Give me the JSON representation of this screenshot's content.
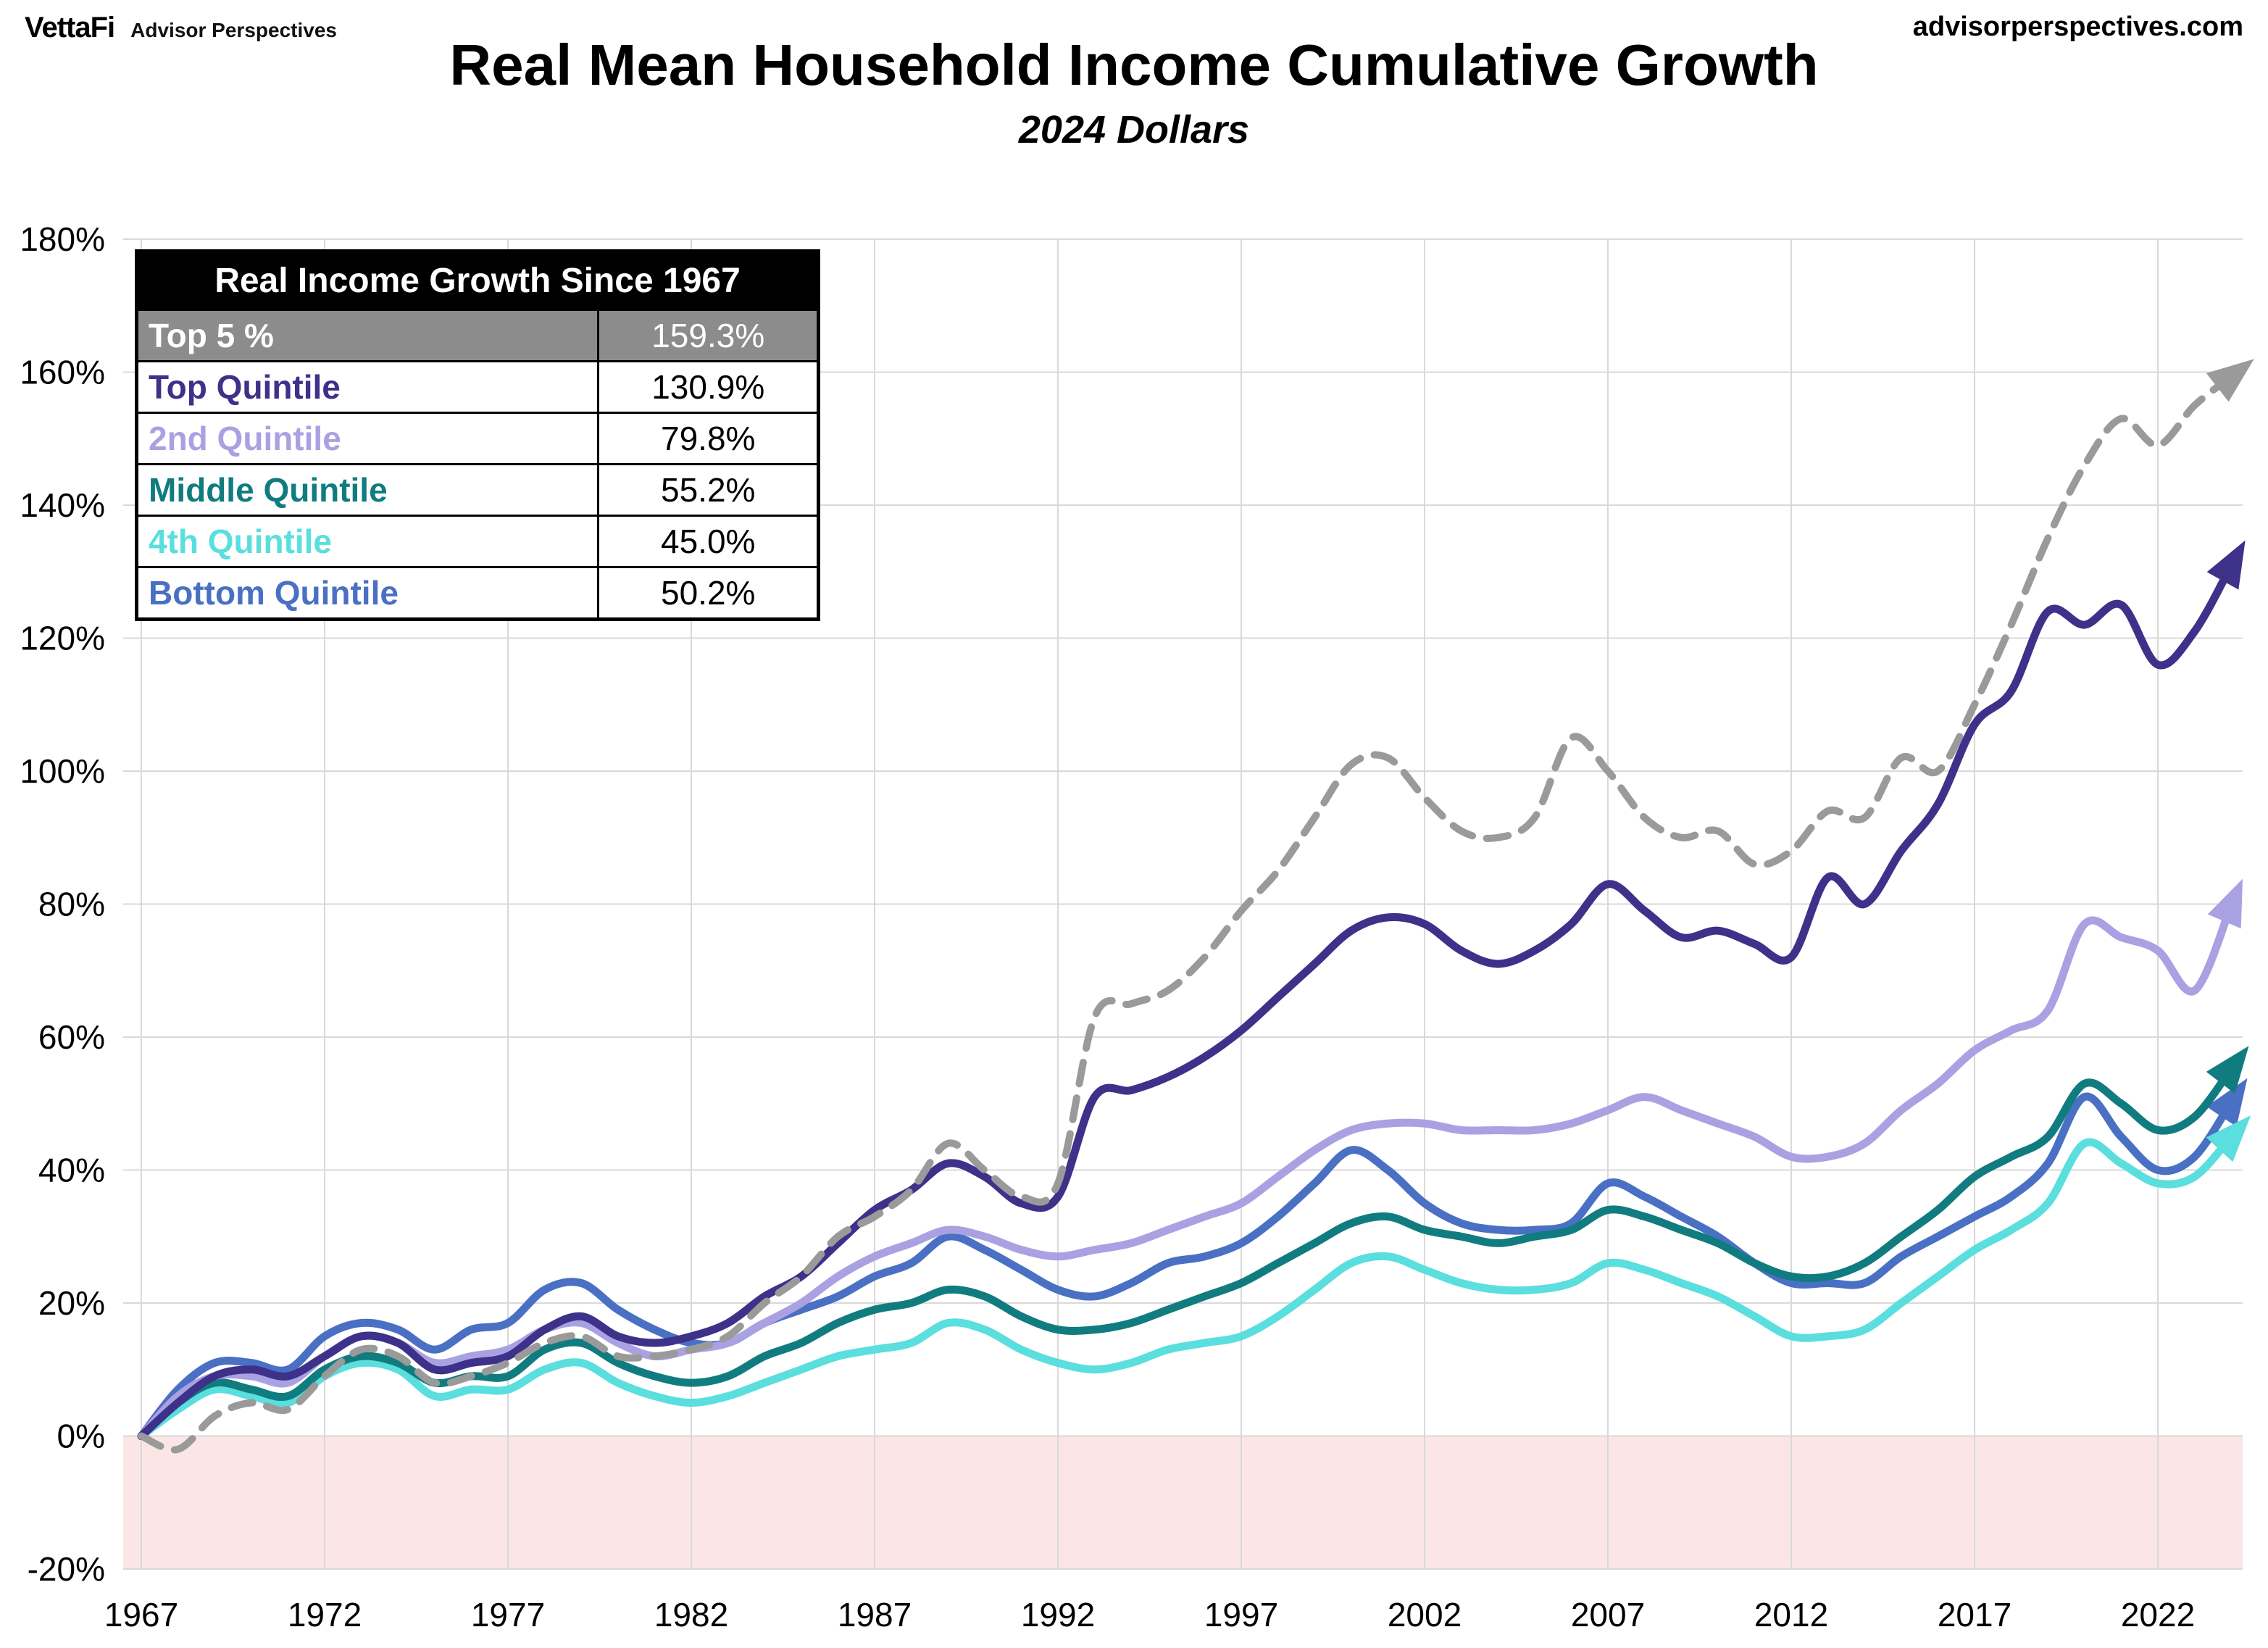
{
  "header": {
    "brand": "VettaFi",
    "brand_sub": "Advisor Perspectives",
    "site": "advisorperspectives.com"
  },
  "chart_data": {
    "type": "line",
    "title": "Real Mean Household Income Cumulative Growth",
    "subtitle": "2024 Dollars",
    "x_start": 1967,
    "x_end": 2024,
    "x_ticks": [
      1967,
      1972,
      1977,
      1982,
      1987,
      1992,
      1997,
      2002,
      2007,
      2012,
      2017,
      2022
    ],
    "ylim": [
      -20,
      180
    ],
    "y_tick_step": 20,
    "y_tick_suffix": "%",
    "grid_color": "#d9d9d9",
    "negative_region_color": "#fbe5e5",
    "legend": {
      "title": "Real Income Growth Since 1967",
      "rows": [
        {
          "label": "Top 5 %",
          "value": "159.3%",
          "label_color": "#ffffff",
          "value_color": "#ffffff",
          "row_bg": "#8c8c8c"
        },
        {
          "label": "Top Quintile",
          "value": "130.9%",
          "label_color": "#3d3189",
          "value_color": "#000000",
          "row_bg": "#ffffff"
        },
        {
          "label": "2nd Quintile",
          "value": "79.8%",
          "label_color": "#aaa1e2",
          "value_color": "#000000",
          "row_bg": "#ffffff"
        },
        {
          "label": "Middle Quintile",
          "value": "55.2%",
          "label_color": "#117c80",
          "value_color": "#000000",
          "row_bg": "#ffffff"
        },
        {
          "label": "4th Quintile",
          "value": "45.0%",
          "label_color": "#5adede",
          "value_color": "#000000",
          "row_bg": "#ffffff"
        },
        {
          "label": "Bottom Quintile",
          "value": "50.2%",
          "label_color": "#4a70c4",
          "value_color": "#000000",
          "row_bg": "#ffffff"
        }
      ]
    },
    "series": [
      {
        "name": "Top 5 %",
        "color": "#9a9a9a",
        "dashed": true,
        "values": [
          0,
          -2,
          3,
          5,
          4,
          9,
          13,
          12,
          8,
          9,
          11,
          14,
          15,
          12,
          12,
          13,
          15,
          20,
          24,
          30,
          33,
          37,
          44,
          40,
          36,
          38,
          63,
          65,
          67,
          72,
          79,
          85,
          93,
          101,
          102,
          96,
          91,
          90,
          93,
          105,
          100,
          93,
          90,
          91,
          86,
          88,
          94,
          93,
          102,
          100,
          110,
          122,
          135,
          146,
          153,
          149,
          155,
          159.3
        ]
      },
      {
        "name": "Top Quintile",
        "color": "#3d3189",
        "dashed": false,
        "values": [
          0,
          5,
          9,
          10,
          9,
          12,
          15,
          14,
          10,
          11,
          12,
          16,
          18,
          15,
          14,
          15,
          17,
          21,
          24,
          29,
          34,
          37,
          41,
          39,
          35,
          36,
          51,
          52,
          54,
          57,
          61,
          66,
          71,
          76,
          78,
          77,
          73,
          71,
          73,
          77,
          83,
          79,
          75,
          76,
          74,
          72,
          84,
          80,
          88,
          95,
          107,
          112,
          124,
          122,
          125,
          116,
          121,
          130.9
        ]
      },
      {
        "name": "2nd Quintile",
        "color": "#aaa1e2",
        "dashed": false,
        "values": [
          0,
          6,
          9,
          9,
          8,
          12,
          15,
          14,
          11,
          12,
          13,
          16,
          17,
          14,
          12,
          13,
          14,
          17,
          20,
          24,
          27,
          29,
          31,
          30,
          28,
          27,
          28,
          29,
          31,
          33,
          35,
          39,
          43,
          46,
          47,
          47,
          46,
          46,
          46,
          47,
          49,
          51,
          49,
          47,
          45,
          42,
          42,
          44,
          49,
          53,
          58,
          61,
          64,
          77,
          75,
          73,
          67,
          79.8
        ]
      },
      {
        "name": "Middle Quintile",
        "color": "#117c80",
        "dashed": false,
        "values": [
          0,
          5,
          8,
          7,
          6,
          10,
          12,
          11,
          8,
          9,
          9,
          13,
          14,
          11,
          9,
          8,
          9,
          12,
          14,
          17,
          19,
          20,
          22,
          21,
          18,
          16,
          16,
          17,
          19,
          21,
          23,
          26,
          29,
          32,
          33,
          31,
          30,
          29,
          30,
          31,
          34,
          33,
          31,
          29,
          26,
          24,
          24,
          26,
          30,
          34,
          39,
          42,
          45,
          53,
          50,
          46,
          48,
          55.2
        ]
      },
      {
        "name": "4th Quintile",
        "color": "#5adede",
        "dashed": false,
        "values": [
          0,
          4,
          7,
          6,
          5,
          9,
          11,
          10,
          6,
          7,
          7,
          10,
          11,
          8,
          6,
          5,
          6,
          8,
          10,
          12,
          13,
          14,
          17,
          16,
          13,
          11,
          10,
          11,
          13,
          14,
          15,
          18,
          22,
          26,
          27,
          25,
          23,
          22,
          22,
          23,
          26,
          25,
          23,
          21,
          18,
          15,
          15,
          16,
          20,
          24,
          28,
          31,
          35,
          44,
          41,
          38,
          39,
          45.0
        ]
      },
      {
        "name": "Bottom Quintile",
        "color": "#4a70c4",
        "dashed": false,
        "values": [
          0,
          7,
          11,
          11,
          10,
          15,
          17,
          16,
          13,
          16,
          17,
          22,
          23,
          19,
          16,
          14,
          14,
          17,
          19,
          21,
          24,
          26,
          30,
          28,
          25,
          22,
          21,
          23,
          26,
          27,
          29,
          33,
          38,
          43,
          40,
          35,
          32,
          31,
          31,
          32,
          38,
          36,
          33,
          30,
          26,
          23,
          23,
          23,
          27,
          30,
          33,
          36,
          41,
          51,
          45,
          40,
          42,
          50.2
        ]
      }
    ]
  }
}
